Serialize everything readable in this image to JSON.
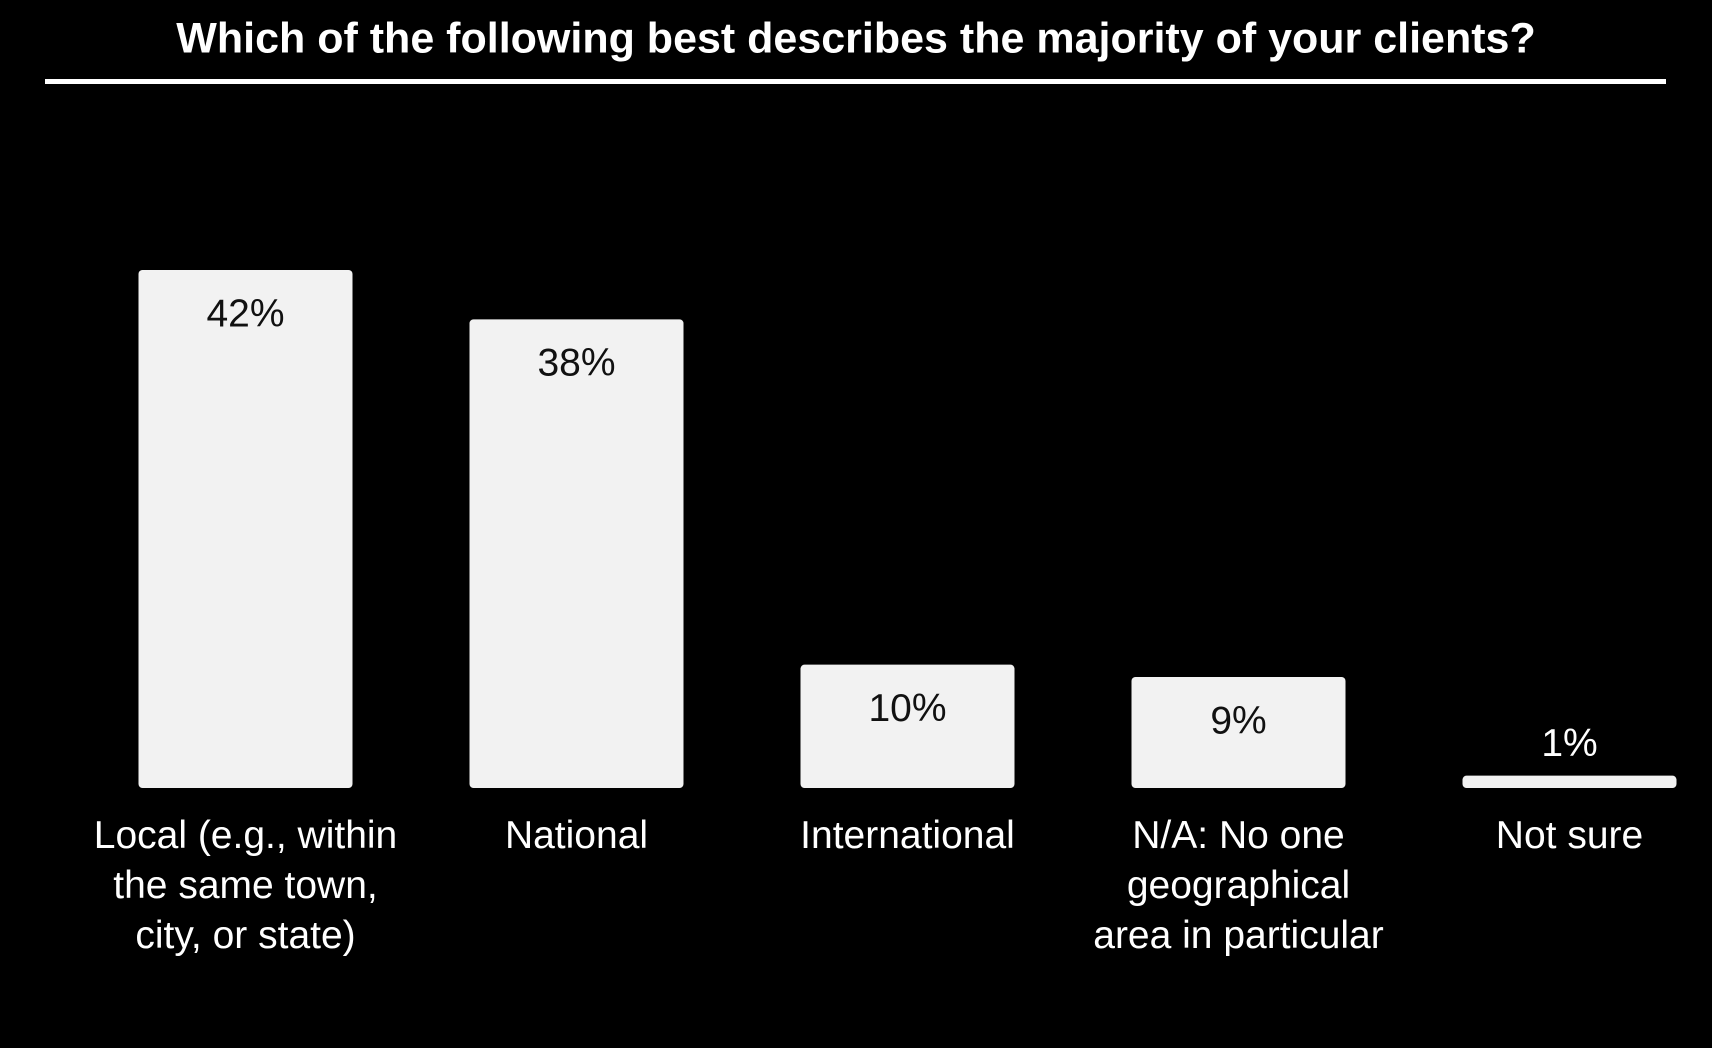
{
  "chart_data": {
    "type": "bar",
    "title": "Which of the following best describes the majority of your clients?",
    "categories": [
      "Local (e.g., within the same town, city, or state)",
      "National",
      "International",
      "N/A: No one geographical area in particular",
      "Not sure"
    ],
    "values": [
      42,
      38,
      10,
      9,
      1
    ],
    "value_labels": [
      "42%",
      "38%",
      "10%",
      "9%",
      "1%"
    ],
    "color": "#f2f2f2"
  }
}
